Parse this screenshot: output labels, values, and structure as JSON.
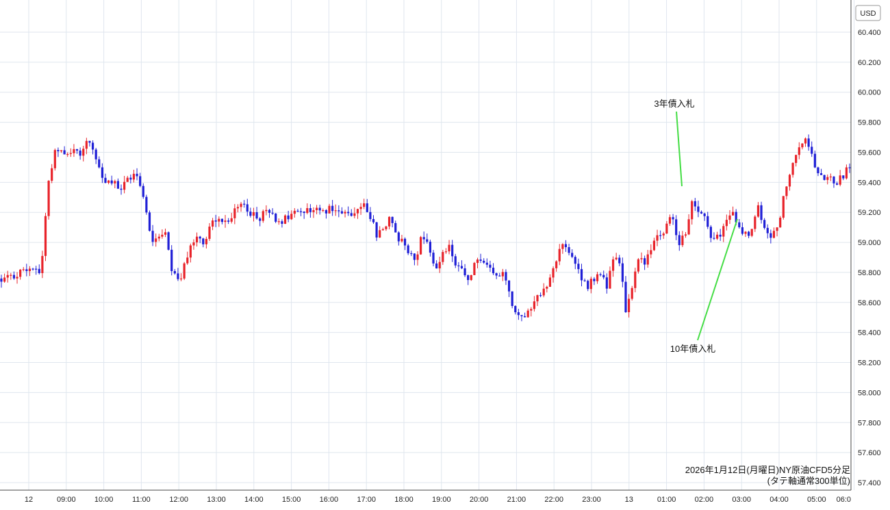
{
  "chart_data": {
    "type": "candlestick",
    "currency_label": "USD",
    "ylim": [
      57.4,
      60.5
    ],
    "y_ticks": [
      "60.400",
      "60.200",
      "60.000",
      "59.800",
      "59.600",
      "59.400",
      "59.200",
      "59.000",
      "58.800",
      "58.600",
      "58.400",
      "58.200",
      "58.000",
      "57.800",
      "57.600",
      "57.400"
    ],
    "x_ticks": [
      "12",
      "09:00",
      "10:00",
      "11:00",
      "12:00",
      "13:00",
      "14:00",
      "15:00",
      "16:00",
      "17:00",
      "18:00",
      "19:00",
      "20:00",
      "21:00",
      "22:00",
      "23:00",
      "13",
      "01:00",
      "02:00",
      "03:00",
      "04:00",
      "05:00",
      "06:0"
    ],
    "up_color": "#e8232a",
    "down_color": "#1f1fd6",
    "annotation_line_color": "#44dd44",
    "annotations": [
      {
        "text": "3年債入札",
        "target_close": 59.25
      },
      {
        "text": "10年債入札",
        "target_close": 59.25
      }
    ],
    "footnote_lines": [
      "2026年1月12日(月曜日)NY原油CFD5分足",
      "(タテ軸通常300単位)"
    ],
    "anchor_closes": [
      58.75,
      58.76,
      58.78,
      58.8,
      58.82,
      58.85,
      58.78,
      59.35,
      59.6,
      59.62,
      59.6,
      59.62,
      59.58,
      59.7,
      59.6,
      59.45,
      59.38,
      59.4,
      59.35,
      59.4,
      59.45,
      59.42,
      59.2,
      59.0,
      59.05,
      59.1,
      58.8,
      58.75,
      58.85,
      59.0,
      59.05,
      59.0,
      59.15,
      59.15,
      59.15,
      59.18,
      59.22,
      59.25,
      59.2,
      59.15,
      59.2,
      59.18,
      59.15,
      59.15,
      59.18,
      59.2,
      59.2,
      59.22,
      59.22,
      59.2,
      59.25,
      59.2,
      59.18,
      59.2,
      59.22,
      59.25,
      59.2,
      59.05,
      59.1,
      59.15,
      59.05,
      59.0,
      58.95,
      58.9,
      59.05,
      59.0,
      58.8,
      58.9,
      59.0,
      58.85,
      58.8,
      58.75,
      58.85,
      58.9,
      58.85,
      58.75,
      58.8,
      58.7,
      58.55,
      58.5,
      58.55,
      58.6,
      58.65,
      58.7,
      58.85,
      58.95,
      59.0,
      58.85,
      58.8,
      58.7,
      58.75,
      58.8,
      58.7,
      58.9,
      58.85,
      58.55,
      58.7,
      58.9,
      58.85,
      59.0,
      59.05,
      59.1,
      59.2,
      59.0,
      59.05,
      59.25,
      59.2,
      59.2,
      59.0,
      59.05,
      59.1,
      59.2,
      59.15,
      59.05,
      59.05,
      59.25,
      59.1,
      59.05,
      59.1,
      59.3,
      59.45,
      59.6,
      59.7,
      59.6,
      59.5,
      59.45,
      59.42,
      59.4,
      59.45,
      59.5
    ]
  }
}
